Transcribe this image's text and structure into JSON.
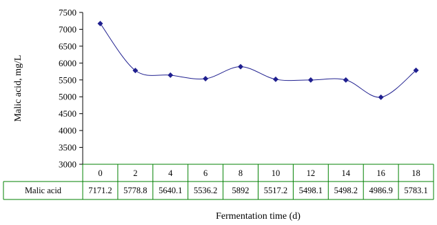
{
  "chart_data": {
    "type": "line",
    "categories": [
      "0",
      "2",
      "4",
      "6",
      "8",
      "10",
      "12",
      "14",
      "16",
      "18"
    ],
    "series": [
      {
        "name": "Malic acid",
        "values": [
          7171.2,
          5778.8,
          5640.1,
          5536.2,
          5892,
          5517.2,
          5498.1,
          5498.2,
          4986.9,
          5783.1
        ],
        "display_values": [
          "7171.2",
          "5778.8",
          "5640.1",
          "5536.2",
          "5892",
          "5517.2",
          "5498.1",
          "5498.2",
          "4986.9",
          "5783.1"
        ]
      }
    ],
    "xlabel": "Fermentation time (d)",
    "ylabel": "Malic acid, mg/L",
    "ylim": [
      3000,
      7500
    ],
    "yticks": [
      "3000",
      "3500",
      "4000",
      "4500",
      "5000",
      "5500",
      "6000",
      "6500",
      "7000",
      "7500"
    ],
    "grid": false,
    "data_table": true,
    "line_color": "#1f1f8f",
    "marker_color": "#1f1f8f",
    "table_border_color": "#008000",
    "marker": "diamond"
  }
}
